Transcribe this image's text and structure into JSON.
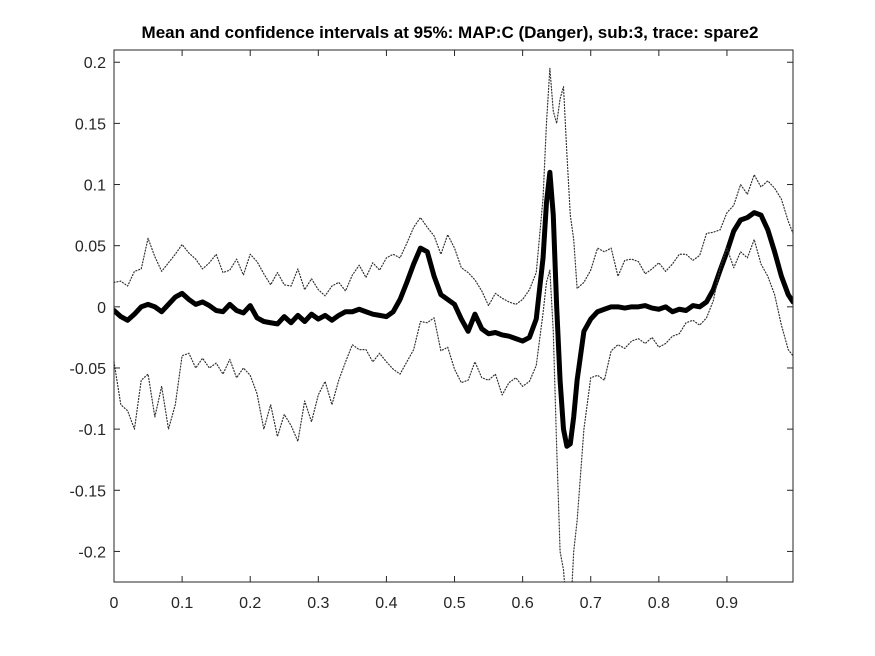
{
  "chart_data": {
    "type": "line",
    "title": "Mean and confidence intervals at 95%: MAP:C (Danger), sub:3, trace: spare2",
    "xlabel": "",
    "ylabel": "",
    "xlim": [
      0,
      0.997
    ],
    "ylim": [
      -0.225,
      0.21
    ],
    "xticks": [
      "0",
      "0.1",
      "0.2",
      "0.3",
      "0.4",
      "0.5",
      "0.6",
      "0.7",
      "0.8",
      "0.9"
    ],
    "yticks": [
      "0.2",
      "0.15",
      "0.1",
      "0.05",
      "0",
      "-0.05",
      "-0.1",
      "-0.15",
      "-0.2"
    ],
    "grid": false,
    "legend": "none",
    "colors": {
      "mean": "#000000",
      "ci": "#333333",
      "axis": "#262626"
    },
    "series": [
      {
        "role": "mean",
        "style": "solid-thick",
        "x": [
          0,
          0.01,
          0.02,
          0.03,
          0.04,
          0.05,
          0.06,
          0.07,
          0.08,
          0.09,
          0.1,
          0.11,
          0.12,
          0.13,
          0.14,
          0.15,
          0.16,
          0.17,
          0.18,
          0.19,
          0.2,
          0.21,
          0.22,
          0.23,
          0.24,
          0.25,
          0.26,
          0.27,
          0.28,
          0.29,
          0.3,
          0.31,
          0.32,
          0.33,
          0.34,
          0.35,
          0.36,
          0.37,
          0.38,
          0.39,
          0.4,
          0.41,
          0.42,
          0.43,
          0.44,
          0.45,
          0.46,
          0.47,
          0.48,
          0.49,
          0.5,
          0.51,
          0.52,
          0.53,
          0.54,
          0.55,
          0.56,
          0.57,
          0.58,
          0.59,
          0.6,
          0.61,
          0.62,
          0.63,
          0.635,
          0.64,
          0.645,
          0.65,
          0.655,
          0.66,
          0.665,
          0.67,
          0.675,
          0.68,
          0.69,
          0.7,
          0.71,
          0.72,
          0.73,
          0.74,
          0.75,
          0.76,
          0.77,
          0.78,
          0.79,
          0.8,
          0.81,
          0.82,
          0.83,
          0.84,
          0.85,
          0.86,
          0.87,
          0.88,
          0.89,
          0.9,
          0.91,
          0.92,
          0.93,
          0.94,
          0.95,
          0.96,
          0.97,
          0.98,
          0.99,
          0.997
        ],
        "y": [
          -0.003,
          -0.008,
          -0.011,
          -0.006,
          0.0,
          0.002,
          0.0,
          -0.004,
          0.002,
          0.008,
          0.011,
          0.006,
          0.002,
          0.004,
          0.001,
          -0.003,
          -0.004,
          0.002,
          -0.003,
          -0.005,
          0.001,
          -0.009,
          -0.012,
          -0.013,
          -0.014,
          -0.008,
          -0.013,
          -0.007,
          -0.012,
          -0.006,
          -0.01,
          -0.007,
          -0.011,
          -0.007,
          -0.004,
          -0.004,
          -0.002,
          -0.004,
          -0.006,
          -0.007,
          -0.008,
          -0.004,
          0.006,
          0.02,
          0.035,
          0.048,
          0.045,
          0.025,
          0.01,
          0.006,
          0.002,
          -0.01,
          -0.02,
          -0.006,
          -0.018,
          -0.022,
          -0.021,
          -0.023,
          -0.024,
          -0.026,
          -0.028,
          -0.025,
          -0.01,
          0.04,
          0.085,
          0.11,
          0.075,
          0.0,
          -0.06,
          -0.1,
          -0.114,
          -0.112,
          -0.09,
          -0.06,
          -0.02,
          -0.01,
          -0.004,
          -0.002,
          0.0,
          0.0,
          -0.001,
          0.0,
          0.0,
          0.001,
          -0.001,
          -0.002,
          0.0,
          -0.004,
          -0.002,
          -0.003,
          0.001,
          0.0,
          0.004,
          0.014,
          0.03,
          0.045,
          0.062,
          0.071,
          0.073,
          0.077,
          0.075,
          0.063,
          0.045,
          0.025,
          0.01,
          0.004
        ]
      },
      {
        "role": "upper",
        "style": "dotted",
        "x": [
          0,
          0.01,
          0.02,
          0.03,
          0.04,
          0.05,
          0.06,
          0.07,
          0.08,
          0.09,
          0.1,
          0.11,
          0.12,
          0.13,
          0.14,
          0.15,
          0.16,
          0.17,
          0.18,
          0.19,
          0.2,
          0.21,
          0.22,
          0.23,
          0.24,
          0.25,
          0.26,
          0.27,
          0.28,
          0.29,
          0.3,
          0.31,
          0.32,
          0.33,
          0.34,
          0.35,
          0.36,
          0.37,
          0.38,
          0.39,
          0.4,
          0.41,
          0.42,
          0.43,
          0.44,
          0.45,
          0.46,
          0.47,
          0.48,
          0.49,
          0.5,
          0.51,
          0.52,
          0.53,
          0.54,
          0.55,
          0.56,
          0.57,
          0.58,
          0.59,
          0.6,
          0.61,
          0.62,
          0.63,
          0.635,
          0.64,
          0.645,
          0.65,
          0.655,
          0.66,
          0.665,
          0.67,
          0.675,
          0.68,
          0.69,
          0.7,
          0.71,
          0.72,
          0.73,
          0.74,
          0.75,
          0.76,
          0.77,
          0.78,
          0.79,
          0.8,
          0.81,
          0.82,
          0.83,
          0.84,
          0.85,
          0.86,
          0.87,
          0.88,
          0.89,
          0.9,
          0.91,
          0.92,
          0.93,
          0.94,
          0.95,
          0.96,
          0.97,
          0.98,
          0.99,
          0.997
        ],
        "y": [
          0.02,
          0.021,
          0.017,
          0.029,
          0.031,
          0.056,
          0.041,
          0.029,
          0.036,
          0.043,
          0.051,
          0.044,
          0.039,
          0.031,
          0.036,
          0.043,
          0.028,
          0.03,
          0.039,
          0.026,
          0.043,
          0.037,
          0.027,
          0.018,
          0.028,
          0.018,
          0.017,
          0.031,
          0.014,
          0.023,
          0.014,
          0.009,
          0.017,
          0.02,
          0.013,
          0.026,
          0.034,
          0.024,
          0.036,
          0.03,
          0.04,
          0.043,
          0.04,
          0.052,
          0.065,
          0.073,
          0.065,
          0.058,
          0.043,
          0.059,
          0.048,
          0.032,
          0.028,
          0.022,
          0.013,
          0.001,
          0.011,
          0.007,
          0.004,
          0.002,
          0.006,
          0.014,
          0.028,
          0.089,
          0.15,
          0.195,
          0.16,
          0.15,
          0.17,
          0.18,
          0.125,
          0.075,
          0.055,
          0.015,
          0.02,
          0.03,
          0.048,
          0.045,
          0.048,
          0.025,
          0.038,
          0.039,
          0.037,
          0.027,
          0.031,
          0.036,
          0.029,
          0.035,
          0.043,
          0.043,
          0.038,
          0.042,
          0.06,
          0.061,
          0.063,
          0.077,
          0.083,
          0.1,
          0.092,
          0.108,
          0.098,
          0.103,
          0.097,
          0.088,
          0.07,
          0.06
        ]
      },
      {
        "role": "lower",
        "style": "dotted",
        "x": [
          0,
          0.01,
          0.02,
          0.03,
          0.04,
          0.05,
          0.06,
          0.07,
          0.08,
          0.09,
          0.1,
          0.11,
          0.12,
          0.13,
          0.14,
          0.15,
          0.16,
          0.17,
          0.18,
          0.19,
          0.2,
          0.21,
          0.22,
          0.23,
          0.24,
          0.25,
          0.26,
          0.27,
          0.28,
          0.29,
          0.3,
          0.31,
          0.32,
          0.33,
          0.34,
          0.35,
          0.36,
          0.37,
          0.38,
          0.39,
          0.4,
          0.41,
          0.42,
          0.43,
          0.44,
          0.45,
          0.46,
          0.47,
          0.48,
          0.49,
          0.5,
          0.51,
          0.52,
          0.53,
          0.54,
          0.55,
          0.56,
          0.57,
          0.58,
          0.59,
          0.6,
          0.61,
          0.62,
          0.63,
          0.635,
          0.64,
          0.645,
          0.65,
          0.655,
          0.66,
          0.665,
          0.67,
          0.675,
          0.68,
          0.69,
          0.7,
          0.71,
          0.72,
          0.73,
          0.74,
          0.75,
          0.76,
          0.77,
          0.78,
          0.79,
          0.8,
          0.81,
          0.82,
          0.83,
          0.84,
          0.85,
          0.86,
          0.87,
          0.88,
          0.89,
          0.9,
          0.91,
          0.92,
          0.93,
          0.94,
          0.95,
          0.96,
          0.97,
          0.98,
          0.99,
          0.997
        ],
        "y": [
          -0.045,
          -0.08,
          -0.085,
          -0.1,
          -0.06,
          -0.055,
          -0.09,
          -0.065,
          -0.1,
          -0.08,
          -0.04,
          -0.038,
          -0.05,
          -0.042,
          -0.05,
          -0.046,
          -0.055,
          -0.043,
          -0.058,
          -0.05,
          -0.056,
          -0.071,
          -0.1,
          -0.08,
          -0.106,
          -0.088,
          -0.097,
          -0.11,
          -0.077,
          -0.094,
          -0.072,
          -0.061,
          -0.08,
          -0.06,
          -0.045,
          -0.031,
          -0.035,
          -0.035,
          -0.045,
          -0.038,
          -0.045,
          -0.051,
          -0.055,
          -0.045,
          -0.035,
          -0.012,
          -0.013,
          -0.009,
          -0.036,
          -0.033,
          -0.051,
          -0.062,
          -0.06,
          -0.045,
          -0.058,
          -0.06,
          -0.055,
          -0.072,
          -0.062,
          -0.058,
          -0.065,
          -0.061,
          -0.048,
          -0.005,
          0.02,
          0.03,
          -0.02,
          -0.115,
          -0.2,
          -0.215,
          -0.25,
          -0.255,
          -0.2,
          -0.175,
          -0.1,
          -0.058,
          -0.056,
          -0.06,
          -0.036,
          -0.031,
          -0.034,
          -0.028,
          -0.026,
          -0.03,
          -0.025,
          -0.033,
          -0.03,
          -0.024,
          -0.022,
          -0.013,
          -0.011,
          -0.015,
          -0.009,
          0.005,
          0.032,
          0.048,
          0.032,
          0.045,
          0.04,
          0.055,
          0.035,
          0.025,
          0.01,
          -0.015,
          -0.035,
          -0.04
        ]
      }
    ]
  }
}
